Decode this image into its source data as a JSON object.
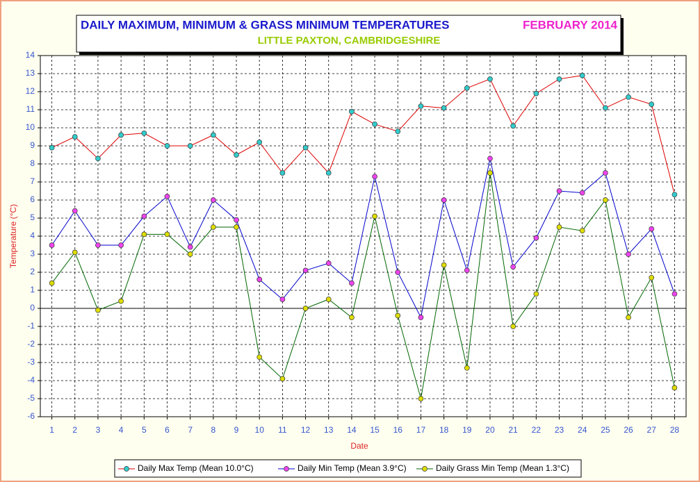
{
  "chart_data": {
    "type": "line",
    "title": "DAILY MAXIMUM, MINIMUM & GRASS MINIMUM TEMPERATURES",
    "period": "FEBRUARY 2014",
    "subtitle": "LITTLE PAXTON, CAMBRIDGESHIRE",
    "x_label": "Date",
    "y_label": "Temperature (°C)",
    "categories": [
      "1",
      "2",
      "3",
      "4",
      "5",
      "6",
      "7",
      "8",
      "9",
      "10",
      "11",
      "12",
      "13",
      "14",
      "15",
      "16",
      "17",
      "18",
      "19",
      "20",
      "21",
      "22",
      "23",
      "24",
      "25",
      "26",
      "27",
      "28"
    ],
    "series": [
      {
        "name": "Daily Max Temp (Mean 10.0°C)",
        "color": "#dd0000",
        "marker_color": "#33cccc",
        "values": [
          8.9,
          9.5,
          8.3,
          9.6,
          9.7,
          9.0,
          9.0,
          9.6,
          8.5,
          9.2,
          7.5,
          8.9,
          7.5,
          10.9,
          10.2,
          9.8,
          11.2,
          11.1,
          12.2,
          12.7,
          10.1,
          11.9,
          12.7,
          12.9,
          11.1,
          11.7,
          11.3,
          6.3
        ]
      },
      {
        "name": "Daily Min Temp (Mean 3.9°C)",
        "color": "#0000cc",
        "marker_color": "#ee44ee",
        "values": [
          3.5,
          5.4,
          3.5,
          3.5,
          5.1,
          6.2,
          3.4,
          6.0,
          4.9,
          1.6,
          0.5,
          2.1,
          2.5,
          1.4,
          7.3,
          2.0,
          -0.5,
          6.0,
          2.1,
          8.3,
          2.3,
          3.9,
          6.5,
          6.4,
          7.5,
          3.0,
          4.4,
          0.8
        ]
      },
      {
        "name": "Daily Grass Min Temp (Mean 1.3°C)",
        "color": "#006600",
        "marker_color": "#dddd00",
        "values": [
          1.4,
          3.1,
          -0.1,
          0.4,
          4.1,
          4.1,
          3.0,
          4.5,
          4.5,
          -2.7,
          -3.9,
          0.0,
          0.5,
          -0.5,
          5.1,
          -0.4,
          -5.0,
          2.4,
          -3.3,
          7.5,
          -1.0,
          0.8,
          4.5,
          4.3,
          6.0,
          -0.5,
          1.7,
          -4.4
        ]
      }
    ],
    "ylim": [
      -6,
      14
    ],
    "yticks": [
      -6,
      -5,
      -4,
      -3,
      -2,
      -1,
      0,
      1,
      2,
      3,
      4,
      5,
      6,
      7,
      8,
      9,
      10,
      11,
      12,
      13,
      14
    ],
    "grid": true
  }
}
